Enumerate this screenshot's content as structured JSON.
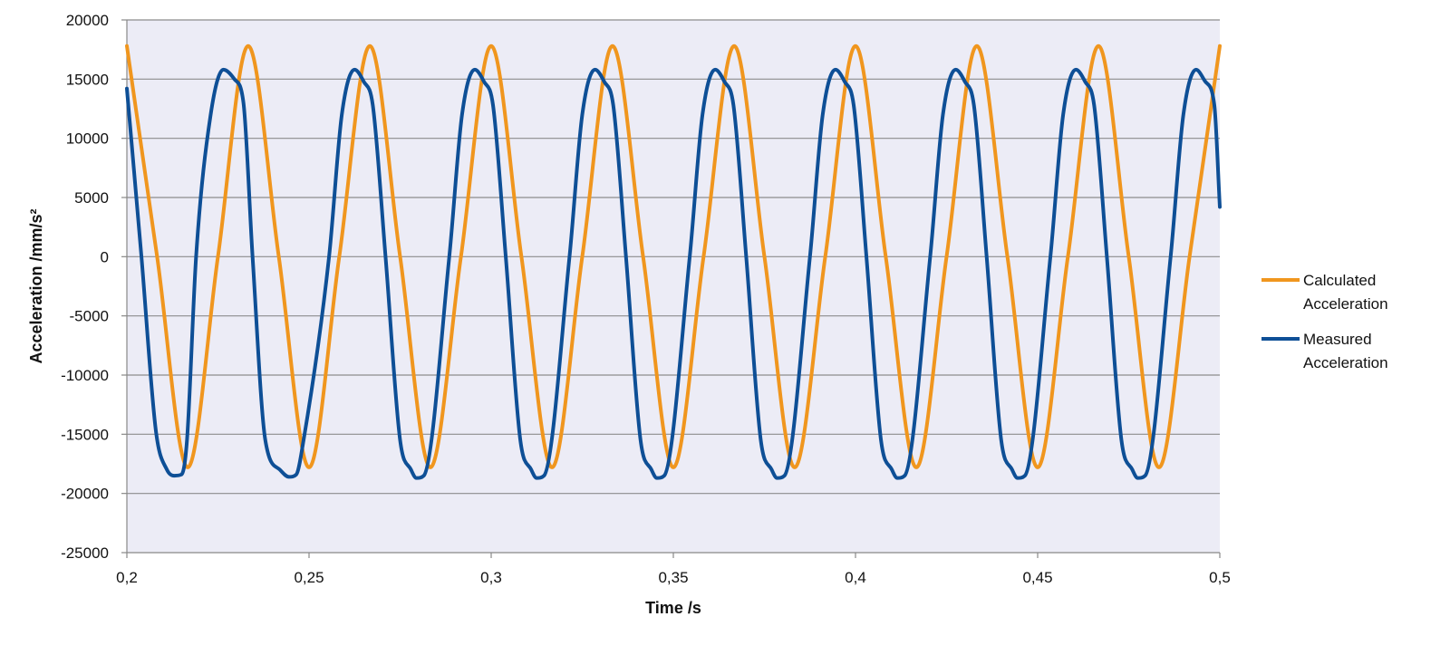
{
  "chart_data": {
    "type": "line",
    "title": "",
    "xlabel": "Time /s",
    "ylabel": "Acceleration /mm/s²",
    "xlim": [
      0.2,
      0.5
    ],
    "ylim": [
      -25000,
      20000
    ],
    "x_ticks": [
      0.2,
      0.25,
      0.3,
      0.35,
      0.4,
      0.45,
      0.5
    ],
    "x_tick_labels": [
      "0,2",
      "0,25",
      "0,3",
      "0,35",
      "0,4",
      "0,45",
      "0,5"
    ],
    "y_ticks": [
      20000,
      15000,
      10000,
      5000,
      0,
      -5000,
      -10000,
      -15000,
      -20000,
      -25000
    ],
    "y_tick_labels": [
      "20000",
      "15000",
      "10000",
      "5000",
      "0",
      "-5000",
      "-10000",
      "-15000",
      "-20000",
      "-25000"
    ],
    "grid": true,
    "plot_background": "#ECECF6",
    "legend_position": "right",
    "series": [
      {
        "name": "Calculated Acceleration",
        "color": "#F0961E",
        "x": [
          0.2,
          0.2083,
          0.2167,
          0.225,
          0.2333,
          0.2417,
          0.25,
          0.2583,
          0.2667,
          0.275,
          0.2833,
          0.2917,
          0.3,
          0.3083,
          0.3167,
          0.325,
          0.3333,
          0.3417,
          0.35,
          0.3583,
          0.3667,
          0.375,
          0.3833,
          0.3917,
          0.4,
          0.4083,
          0.4167,
          0.425,
          0.4333,
          0.4417,
          0.45,
          0.4583,
          0.4667,
          0.475,
          0.4833,
          0.4917,
          0.5
        ],
        "y": [
          17800,
          0,
          -17800,
          0,
          17800,
          0,
          -17800,
          0,
          17800,
          0,
          -17800,
          0,
          17800,
          0,
          -17800,
          0,
          17800,
          0,
          -17800,
          0,
          17800,
          0,
          -17800,
          0,
          17800,
          0,
          -17800,
          0,
          17800,
          0,
          -17800,
          0,
          17800,
          0,
          -17800,
          0,
          17800
        ]
      },
      {
        "name": "Measured Acceleration",
        "color": "#0E4F96",
        "x": [
          0.2,
          0.204,
          0.208,
          0.211,
          0.213,
          0.215,
          0.2165,
          0.219,
          0.223,
          0.2265,
          0.2295,
          0.232,
          0.2345,
          0.238,
          0.242,
          0.2445,
          0.2465,
          0.2485,
          0.2555,
          0.259,
          0.2625,
          0.265,
          0.2675,
          0.271,
          0.275,
          0.278,
          0.2795,
          0.2815,
          0.2885,
          0.292,
          0.2955,
          0.298,
          0.3005,
          0.304,
          0.308,
          0.311,
          0.3125,
          0.3145,
          0.3215,
          0.325,
          0.3285,
          0.331,
          0.3335,
          0.337,
          0.341,
          0.344,
          0.3455,
          0.3475,
          0.3545,
          0.358,
          0.3615,
          0.364,
          0.3665,
          0.37,
          0.374,
          0.377,
          0.3785,
          0.3805,
          0.3875,
          0.391,
          0.3945,
          0.397,
          0.3995,
          0.403,
          0.407,
          0.41,
          0.4115,
          0.4135,
          0.4205,
          0.424,
          0.4275,
          0.43,
          0.4325,
          0.436,
          0.44,
          0.443,
          0.4445,
          0.4465,
          0.4535,
          0.457,
          0.4605,
          0.463,
          0.4655,
          0.469,
          0.473,
          0.476,
          0.4775,
          0.4795,
          0.4865,
          0.49,
          0.4935,
          0.496,
          0.4985,
          0.5
        ],
        "y": [
          14200,
          0,
          -14800,
          -18000,
          -18500,
          -18400,
          -15500,
          0,
          12000,
          15800,
          15000,
          13000,
          0,
          -15500,
          -18000,
          -18600,
          -18400,
          -15500,
          0,
          12000,
          15800,
          14800,
          12800,
          0,
          -15500,
          -18000,
          -18700,
          -18500,
          0,
          12000,
          15800,
          14800,
          12800,
          0,
          -15500,
          -18000,
          -18700,
          -18500,
          0,
          12000,
          15800,
          14800,
          12800,
          0,
          -15500,
          -18000,
          -18700,
          -18500,
          0,
          12000,
          15800,
          14800,
          12800,
          0,
          -15500,
          -18000,
          -18700,
          -18500,
          0,
          12000,
          15800,
          14800,
          12800,
          0,
          -15500,
          -18000,
          -18700,
          -18500,
          0,
          12000,
          15800,
          14800,
          12800,
          0,
          -15500,
          -18000,
          -18700,
          -18500,
          0,
          12000,
          15800,
          14800,
          12800,
          0,
          -15500,
          -18000,
          -18700,
          -18500,
          0,
          12000,
          15800,
          14800,
          12800,
          4200
        ]
      }
    ]
  }
}
